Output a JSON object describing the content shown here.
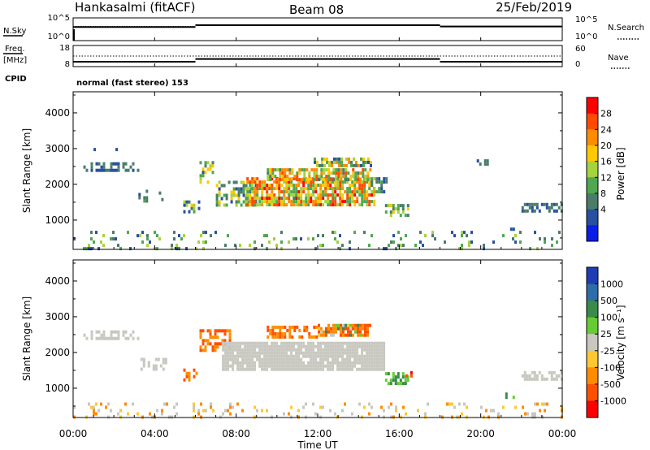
{
  "header": {
    "station": "Hankasalmi (fitACF)",
    "beam": "Beam 08",
    "date": "25/Feb/2019"
  },
  "summary": {
    "nsky_label": "N.Sky",
    "nsearch_label": "N.Search",
    "freq_label_line1": "Freq.",
    "freq_label_line2": "[MHz]",
    "nave_label": "Nave",
    "cpid_label": "CPID",
    "noise_ticks_left": [
      "10^5",
      "10^0"
    ],
    "noise_ticks_right": [
      "10^5",
      "10^0"
    ],
    "freq_ticks": [
      "18",
      "8"
    ],
    "nave_ticks": [
      "60",
      "0"
    ],
    "cpid_text": "normal (fast stereo) 153"
  },
  "axes": {
    "xlabel": "Time UT",
    "x_ticks": [
      "00:00",
      "04:00",
      "08:00",
      "12:00",
      "16:00",
      "20:00",
      "00:00"
    ],
    "ylabel": "Slant Range [km]",
    "y_ticks": [
      "4000",
      "3000",
      "2000",
      "1000"
    ]
  },
  "colorbars": {
    "power_label": "Power [dB]",
    "power_ticks": [
      "28",
      "24",
      "20",
      "16",
      "12",
      "8",
      "4"
    ],
    "power_colors": [
      "#ff0000",
      "#ff4a00",
      "#ff8c00",
      "#ffc800",
      "#a6d23c",
      "#4ea84e",
      "#4a7c6a",
      "#2850a0",
      "#0a1ee6"
    ],
    "velocity_label": "Velocity [m s⁻¹]",
    "velocity_ticks": [
      "1000",
      "500",
      "100",
      "25",
      "-25",
      "-100",
      "-500",
      "-1000"
    ],
    "velocity_colors": [
      "#1e3cb4",
      "#2e6ea8",
      "#3a8a4a",
      "#66cc33",
      "#c8c8c0",
      "#ffc832",
      "#ff8c00",
      "#ff5000",
      "#ff0000"
    ]
  },
  "chart_data": {
    "type": "heatmap",
    "title": "Hankasalmi (fitACF)",
    "xlabel": "Time UT",
    "ylabel": "Slant Range [km]",
    "xlim": [
      0,
      24
    ],
    "ylim": [
      180,
      4590
    ],
    "x_ticks": [
      "00:00",
      "04:00",
      "08:00",
      "12:00",
      "16:00",
      "20:00",
      "00:00"
    ],
    "noise": {
      "segments": [
        {
          "x": [
            0.0,
            6.0
          ],
          "sky_level": 0.6,
          "search_level": 0.62
        },
        {
          "x": [
            6.0,
            18.0
          ],
          "sky_level": 0.68,
          "search_level": 0.7
        },
        {
          "x": [
            18.0,
            24.0
          ],
          "sky_level": 0.62,
          "search_level": 0.64
        }
      ]
    },
    "frequency": {
      "segments": [
        {
          "x": [
            0.0,
            6.0
          ],
          "value_mhz": 10.3
        },
        {
          "x": [
            6.0,
            18.0
          ],
          "value_mhz": 11.6
        },
        {
          "x": [
            18.0,
            24.0
          ],
          "value_mhz": 10.3
        }
      ],
      "nave": 30
    },
    "power_panel": {
      "colorbar_label": "Power [dB]",
      "colorbar_ticks_db": [
        4,
        8,
        12,
        16,
        20,
        24,
        28
      ],
      "regions": [
        {
          "t": [
            0.5,
            3.2
          ],
          "r": [
            2420,
            2620
          ],
          "power_db": [
            4,
            10
          ],
          "density": 0.55
        },
        {
          "t": [
            1.0,
            2.7
          ],
          "r": [
            2950,
            3020
          ],
          "power_db": [
            4,
            6
          ],
          "density": 0.12
        },
        {
          "t": [
            3.2,
            3.6
          ],
          "r": [
            1520,
            1850
          ],
          "power_db": [
            4,
            14
          ],
          "density": 0.45
        },
        {
          "t": [
            4.2,
            4.4
          ],
          "r": [
            1500,
            1800
          ],
          "power_db": [
            4,
            12
          ],
          "density": 0.4
        },
        {
          "t": [
            5.4,
            6.2
          ],
          "r": [
            1250,
            1550
          ],
          "power_db": [
            4,
            18
          ],
          "density": 0.45
        },
        {
          "t": [
            6.2,
            6.9
          ],
          "r": [
            2100,
            2650
          ],
          "power_db": [
            6,
            20
          ],
          "density": 0.5
        },
        {
          "t": [
            7.0,
            9.0
          ],
          "r": [
            1400,
            2100
          ],
          "power_db": [
            6,
            20
          ],
          "density": 0.5
        },
        {
          "t": [
            8.5,
            14.8
          ],
          "r": [
            1450,
            2200
          ],
          "power_db": [
            10,
            28
          ],
          "density": 0.8
        },
        {
          "t": [
            9.5,
            14.6
          ],
          "r": [
            2150,
            2450
          ],
          "power_db": [
            8,
            26
          ],
          "density": 0.72
        },
        {
          "t": [
            11.8,
            14.6
          ],
          "r": [
            2480,
            2750
          ],
          "power_db": [
            6,
            22
          ],
          "density": 0.7
        },
        {
          "t": [
            14.6,
            15.4
          ],
          "r": [
            1800,
            2200
          ],
          "power_db": [
            6,
            14
          ],
          "density": 0.55
        },
        {
          "t": [
            15.3,
            16.4
          ],
          "r": [
            1150,
            1450
          ],
          "power_db": [
            6,
            18
          ],
          "density": 0.62
        },
        {
          "t": [
            19.8,
            20.3
          ],
          "r": [
            2550,
            2700
          ],
          "power_db": [
            4,
            10
          ],
          "density": 0.4
        },
        {
          "t": [
            21.2,
            21.6
          ],
          "r": [
            780,
            880
          ],
          "power_db": [
            4,
            8
          ],
          "density": 0.5
        },
        {
          "t": [
            22.0,
            24.0
          ],
          "r": [
            1280,
            1480
          ],
          "power_db": [
            4,
            10
          ],
          "density": 0.5
        },
        {
          "t": [
            0.0,
            24.0
          ],
          "r": [
            200,
            700
          ],
          "power_db": [
            4,
            16
          ],
          "density": 0.12
        }
      ]
    },
    "velocity_panel": {
      "colorbar_label": "Velocity [m s⁻¹]",
      "colorbar_ticks": [
        1000,
        500,
        100,
        25,
        -25,
        -100,
        -500,
        -1000
      ],
      "regions": [
        {
          "t": [
            0.5,
            3.2
          ],
          "r": [
            2420,
            2620
          ],
          "velocity": [
            -25,
            25
          ],
          "density": 0.55
        },
        {
          "t": [
            3.3,
            4.5
          ],
          "r": [
            1500,
            1850
          ],
          "velocity": [
            -25,
            25
          ],
          "density": 0.45
        },
        {
          "t": [
            5.4,
            6.0
          ],
          "r": [
            1250,
            1550
          ],
          "velocity": [
            -400,
            -100
          ],
          "density": 0.45
        },
        {
          "t": [
            6.2,
            7.7
          ],
          "r": [
            2100,
            2650
          ],
          "velocity": [
            -500,
            -100
          ],
          "density": 0.6
        },
        {
          "t": [
            7.3,
            15.2
          ],
          "r": [
            1550,
            2300
          ],
          "velocity": [
            -25,
            25
          ],
          "density": 0.92
        },
        {
          "t": [
            9.5,
            12.0
          ],
          "r": [
            2450,
            2750
          ],
          "velocity": [
            -400,
            -100
          ],
          "density": 0.6
        },
        {
          "t": [
            12.0,
            14.6
          ],
          "r": [
            2500,
            2800
          ],
          "velocity": [
            -500,
            100
          ],
          "density": 0.75
        },
        {
          "t": [
            15.3,
            16.4
          ],
          "r": [
            1150,
            1450
          ],
          "velocity": [
            25,
            100
          ],
          "density": 0.7
        },
        {
          "t": [
            16.3,
            16.6
          ],
          "r": [
            1380,
            1480
          ],
          "velocity": [
            -1000,
            -500
          ],
          "density": 0.7
        },
        {
          "t": [
            21.2,
            21.6
          ],
          "r": [
            780,
            880
          ],
          "velocity": [
            25,
            100
          ],
          "density": 0.5
        },
        {
          "t": [
            22.0,
            24.0
          ],
          "r": [
            1280,
            1480
          ],
          "velocity": [
            -25,
            25
          ],
          "density": 0.5
        },
        {
          "t": [
            0.0,
            24.0
          ],
          "r": [
            200,
            600
          ],
          "velocity": [
            -100,
            25
          ],
          "density": 0.14
        }
      ]
    }
  }
}
